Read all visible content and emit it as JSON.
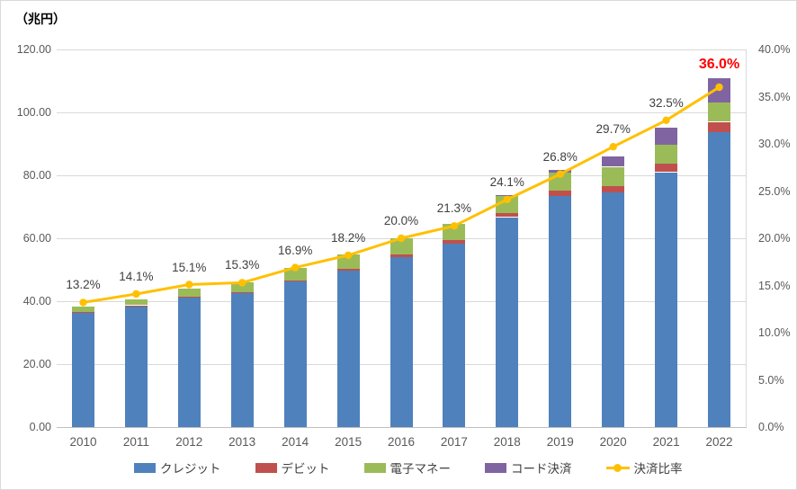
{
  "chart_data": {
    "type": "bar",
    "subtype": "stacked-bar-with-line-combo",
    "axis_unit_title": "（兆円）",
    "categories": [
      "2010",
      "2011",
      "2012",
      "2013",
      "2014",
      "2015",
      "2016",
      "2017",
      "2018",
      "2019",
      "2020",
      "2021",
      "2022"
    ],
    "series": [
      {
        "key": "credit",
        "name": "クレジット",
        "color": "#4F81BD",
        "values": [
          36.3,
          38.4,
          41.1,
          42.5,
          46.3,
          49.8,
          54.0,
          58.4,
          66.7,
          73.4,
          74.5,
          81.0,
          93.8
        ]
      },
      {
        "key": "debit",
        "name": "デビット",
        "color": "#C0504D",
        "values": [
          0.3,
          0.3,
          0.4,
          0.4,
          0.4,
          0.5,
          0.8,
          1.1,
          1.4,
          1.7,
          2.2,
          2.8,
          3.2
        ]
      },
      {
        "key": "emoney",
        "name": "電子マネー",
        "color": "#9BBB59",
        "values": [
          1.6,
          1.9,
          2.5,
          3.1,
          4.0,
          4.6,
          5.1,
          5.2,
          5.5,
          5.7,
          6.0,
          6.0,
          6.1
        ]
      },
      {
        "key": "code",
        "name": "コード決済",
        "color": "#8064A2",
        "values": [
          0,
          0,
          0,
          0,
          0,
          0,
          0,
          0,
          0.2,
          1.0,
          3.2,
          5.3,
          7.9
        ]
      }
    ],
    "line_series": {
      "key": "ratio",
      "name": "決済比率",
      "color": "#FFC000",
      "axis": "right",
      "values": [
        13.2,
        14.1,
        15.1,
        15.3,
        16.9,
        18.2,
        20.0,
        21.3,
        24.1,
        26.8,
        29.7,
        32.5,
        36.0
      ],
      "point_labels": [
        "13.2%",
        "14.1%",
        "15.1%",
        "15.3%",
        "16.9%",
        "18.2%",
        "20.0%",
        "21.3%",
        "24.1%",
        "26.8%",
        "29.7%",
        "32.5%",
        "36.0%"
      ],
      "highlight_last_label": true,
      "highlight_color": "#FF0000"
    },
    "left_axis": {
      "min": 0,
      "max": 120,
      "step": 20,
      "tick_labels": [
        "0.00",
        "20.00",
        "40.00",
        "60.00",
        "80.00",
        "100.00",
        "120.00"
      ]
    },
    "right_axis": {
      "min": 0,
      "max": 40,
      "step": 5,
      "tick_labels": [
        "0.0%",
        "5.0%",
        "10.0%",
        "15.0%",
        "20.0%",
        "25.0%",
        "30.0%",
        "35.0%",
        "40.0%"
      ]
    },
    "grid": true,
    "legend_position": "bottom",
    "colors": {
      "gridline": "#D9D9D9",
      "axis_line": "#BFBFBF",
      "axis_text": "#595959",
      "data_label_text": "#404040",
      "background": "#FFFFFF"
    }
  }
}
